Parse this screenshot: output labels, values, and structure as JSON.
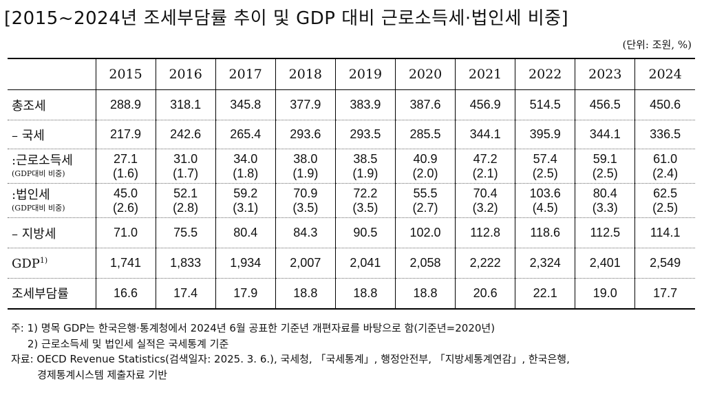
{
  "title": "[2015~2024년 조세부담률 추이 및 GDP 대비 근로소득세·법인세 비중]",
  "unit": "(단위: 조원, %)",
  "years": [
    "2015",
    "2016",
    "2017",
    "2018",
    "2019",
    "2020",
    "2021",
    "2022",
    "2023",
    "2024"
  ],
  "rows": [
    {
      "label": "총조세",
      "values": [
        "288.9",
        "318.1",
        "345.8",
        "377.9",
        "383.9",
        "387.6",
        "456.9",
        "514.5",
        "456.5",
        "450.6"
      ]
    },
    {
      "label": "– 국세",
      "values": [
        "217.9",
        "242.6",
        "265.4",
        "293.6",
        "293.5",
        "285.5",
        "344.1",
        "395.9",
        "344.1",
        "336.5"
      ]
    },
    {
      "label": ":근로소득세",
      "sublabel": "(GDP대비 비중)",
      "values": [
        "27.1",
        "31.0",
        "34.0",
        "38.0",
        "38.5",
        "40.9",
        "47.2",
        "57.4",
        "59.1",
        "61.0"
      ],
      "sub": [
        "(1.6)",
        "(1.7)",
        "(1.8)",
        "(1.9)",
        "(1.9)",
        "(2.0)",
        "(2.1)",
        "(2.5)",
        "(2.5)",
        "(2.4)"
      ]
    },
    {
      "label": ":법인세",
      "sublabel": "(GDP대비 비중)",
      "values": [
        "45.0",
        "52.1",
        "59.2",
        "70.9",
        "72.2",
        "55.5",
        "70.4",
        "103.6",
        "80.4",
        "62.5"
      ],
      "sub": [
        "(2.6)",
        "(2.8)",
        "(3.1)",
        "(3.5)",
        "(3.5)",
        "(2.7)",
        "(3.2)",
        "(4.5)",
        "(3.3)",
        "(2.5)"
      ]
    },
    {
      "label": "– 지방세",
      "values": [
        "71.0",
        "75.5",
        "80.4",
        "84.3",
        "90.5",
        "102.0",
        "112.8",
        "118.6",
        "112.5",
        "114.1"
      ]
    },
    {
      "label": "GDP",
      "sup": "1)",
      "values": [
        "1,741",
        "1,833",
        "1,934",
        "2,007",
        "2,041",
        "2,058",
        "2,222",
        "2,324",
        "2,401",
        "2,549"
      ]
    },
    {
      "label": "조세부담률",
      "values": [
        "16.6",
        "17.4",
        "17.9",
        "18.8",
        "18.8",
        "18.8",
        "20.6",
        "22.1",
        "19.0",
        "17.7"
      ]
    }
  ],
  "notes": [
    "주: 1) 명목 GDP는 한국은행·통계청에서 2024년 6월 공표한 기준년 개편자료를 바탕으로 함(기준년=2020년)",
    "     2) 근로소득세 및 법인세 실적은 국세통계 기준",
    "자료: OECD Revenue Statistics(검색일자: 2025. 3. 6.), 국세청, 「국세통계」, 행정안전부, 「지방세통계연감」, 한국은행,",
    "        경제통계시스템 제출자료 기반"
  ]
}
